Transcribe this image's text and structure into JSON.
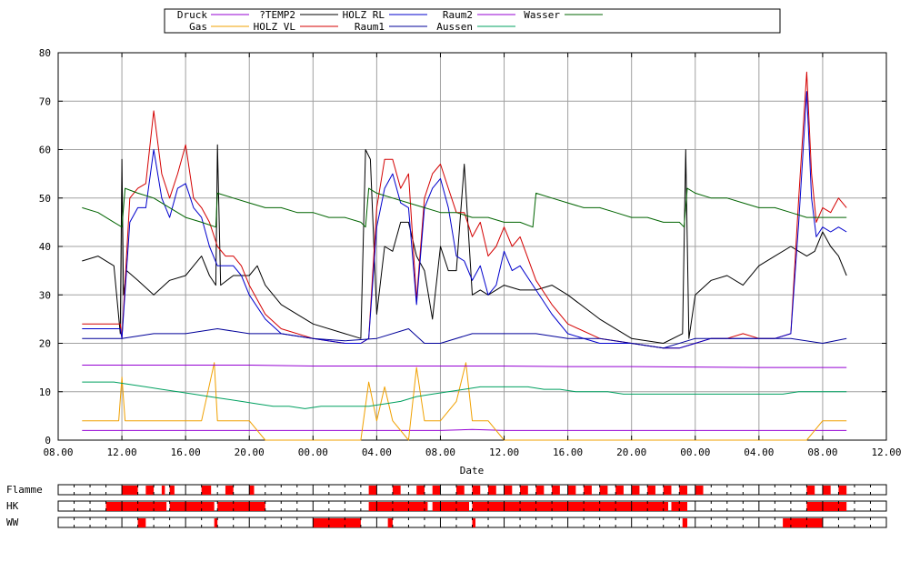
{
  "chart_data": {
    "type": "line",
    "xlabel": "Date",
    "x_tick_labels": [
      "08.00",
      "12.00",
      "16.00",
      "20.00",
      "00.00",
      "04.00",
      "08.00",
      "12.00",
      "16.00",
      "20.00",
      "00.00",
      "04.00",
      "08.00",
      "12.00"
    ],
    "ylim": [
      0,
      80
    ],
    "y_ticks": [
      0,
      10,
      20,
      30,
      40,
      50,
      60,
      70,
      80
    ],
    "grid": true,
    "legend_position": "top",
    "series": [
      {
        "name": "Druck",
        "color": "#9400d3",
        "x": [
          9.5,
          12,
          16,
          20,
          24,
          28,
          32,
          34,
          36,
          40,
          44,
          48,
          52,
          56,
          57.5
        ],
        "y": [
          2,
          2,
          2,
          2,
          2,
          2,
          2,
          2.2,
          2,
          2,
          2,
          2,
          2,
          2,
          2
        ]
      },
      {
        "name": "Gas",
        "color": "#f0a000",
        "x": [
          9.5,
          10,
          11,
          11.8,
          12,
          12.2,
          12.5,
          13,
          14,
          15,
          16,
          17,
          17.8,
          18,
          18.5,
          19,
          20,
          21,
          27,
          27.5,
          28,
          28.5,
          29,
          30,
          30.5,
          31,
          32,
          33,
          33.6,
          34,
          35,
          36,
          55,
          56,
          56.5,
          57,
          57.5
        ],
        "y": [
          4,
          4,
          4,
          4,
          13,
          4,
          4,
          4,
          4,
          4,
          4,
          4,
          16,
          4,
          4,
          4,
          4,
          0,
          0,
          12,
          4,
          11,
          4,
          0,
          15,
          4,
          4,
          8,
          16,
          4,
          4,
          0,
          0,
          4,
          4,
          4,
          4
        ]
      },
      {
        "name": "?TEMP2",
        "color": "#000000",
        "x": [
          9.5,
          10.5,
          11.5,
          11.9,
          12,
          12.1,
          12.3,
          13,
          14,
          15,
          16,
          16.5,
          17,
          17.5,
          17.9,
          18,
          18.2,
          19,
          20,
          20.5,
          21,
          22,
          24,
          26,
          27,
          27.3,
          27.6,
          28,
          28.5,
          29,
          29.5,
          30,
          30.5,
          31,
          31.5,
          32,
          32.5,
          33,
          33.5,
          34,
          34.5,
          35,
          35.5,
          36,
          37,
          38,
          39,
          40,
          42,
          44,
          46,
          47.2,
          47.4,
          47.6,
          48,
          49,
          50,
          51,
          52,
          53,
          54,
          54.5,
          55,
          55.5,
          56,
          56.5,
          57,
          57.5
        ],
        "y": [
          37,
          38,
          36,
          22,
          58,
          30,
          35,
          33,
          30,
          33,
          34,
          36,
          38,
          34,
          32,
          61,
          32,
          34,
          34,
          36,
          32,
          28,
          24,
          22,
          21,
          60,
          58,
          26,
          40,
          39,
          45,
          45,
          38,
          35,
          25,
          40,
          35,
          35,
          57,
          30,
          31,
          30,
          31,
          32,
          31,
          31,
          32,
          30,
          25,
          21,
          20,
          22,
          60,
          21,
          30,
          33,
          34,
          32,
          36,
          38,
          40,
          39,
          38,
          39,
          43,
          40,
          38,
          34
        ]
      },
      {
        "name": "HOLZ VL",
        "color": "#d40000",
        "x": [
          9.5,
          11.5,
          11.9,
          12,
          12.5,
          13,
          13.5,
          14,
          14.5,
          15,
          15.5,
          16,
          16.5,
          17,
          17.5,
          18,
          18.5,
          19,
          19.5,
          20,
          21,
          22,
          24,
          26,
          27,
          27.5,
          28,
          28.5,
          29,
          29.5,
          30,
          30.5,
          31,
          31.5,
          32,
          32.5,
          33,
          33.5,
          34,
          34.5,
          35,
          35.5,
          36,
          36.5,
          37,
          38,
          39,
          40,
          42,
          44,
          46,
          47,
          48,
          49,
          50,
          51,
          52,
          53,
          54,
          54.5,
          55,
          55.3,
          55.6,
          56,
          56.5,
          57,
          57.5
        ],
        "y": [
          24,
          24,
          24,
          21,
          50,
          52,
          53,
          68,
          55,
          50,
          55,
          61,
          50,
          48,
          45,
          40,
          38,
          38,
          36,
          32,
          26,
          23,
          21,
          20,
          20,
          21,
          48,
          58,
          58,
          52,
          55,
          29,
          50,
          55,
          57,
          52,
          47,
          47,
          42,
          45,
          38,
          40,
          44,
          40,
          42,
          33,
          28,
          24,
          21,
          20,
          19,
          19,
          20,
          21,
          21,
          22,
          21,
          21,
          22,
          50,
          76,
          55,
          45,
          48,
          47,
          50,
          48
        ]
      },
      {
        "name": "HOLZ RL",
        "color": "#0000cc",
        "x": [
          9.5,
          11.5,
          11.9,
          12,
          12.5,
          13,
          13.5,
          14,
          14.5,
          15,
          15.5,
          16,
          16.5,
          17,
          17.5,
          18,
          18.5,
          19,
          19.5,
          20,
          21,
          22,
          24,
          26,
          27,
          27.5,
          28,
          28.5,
          29,
          29.5,
          30,
          30.5,
          31,
          31.5,
          32,
          32.5,
          33,
          33.5,
          34,
          34.5,
          35,
          35.5,
          36,
          36.5,
          37,
          38,
          39,
          40,
          42,
          44,
          46,
          47,
          48,
          49,
          50,
          51,
          52,
          53,
          54,
          54.5,
          55,
          55.3,
          55.6,
          56,
          56.5,
          57,
          57.5
        ],
        "y": [
          23,
          23,
          23,
          21,
          45,
          48,
          48,
          60,
          50,
          46,
          52,
          53,
          48,
          46,
          40,
          36,
          36,
          36,
          34,
          30,
          25,
          22,
          21,
          20,
          20,
          21,
          44,
          52,
          55,
          49,
          48,
          28,
          48,
          52,
          54,
          48,
          38,
          37,
          33,
          36,
          30,
          32,
          39,
          35,
          36,
          31,
          26,
          22,
          20,
          20,
          19,
          19,
          20,
          21,
          21,
          21,
          21,
          21,
          22,
          45,
          72,
          50,
          42,
          44,
          43,
          44,
          43
        ]
      },
      {
        "name": "Raum1",
        "color": "#000099",
        "x": [
          9.5,
          12,
          14,
          16,
          18,
          20,
          22,
          24,
          26,
          28,
          30,
          31,
          32,
          34,
          36,
          38,
          40,
          42,
          44,
          46,
          48,
          50,
          52,
          54,
          56,
          57.5
        ],
        "y": [
          21,
          21,
          22,
          22,
          23,
          22,
          22,
          21,
          20.5,
          21,
          23,
          20,
          20,
          22,
          22,
          22,
          21,
          21,
          20,
          19,
          21,
          21,
          21,
          21,
          20,
          21
        ]
      },
      {
        "name": "Raum2",
        "color": "#9400d3",
        "x": [
          9.5,
          12,
          16,
          20,
          24,
          28,
          32,
          36,
          40,
          44,
          48,
          52,
          57.5
        ],
        "y": [
          15.5,
          15.5,
          15.5,
          15.5,
          15.3,
          15.3,
          15.3,
          15.3,
          15.2,
          15.2,
          15.1,
          15,
          15
        ]
      },
      {
        "name": "Aussen",
        "color": "#00a060",
        "x": [
          9.5,
          10.5,
          11.5,
          12.5,
          13.5,
          14.5,
          15.5,
          16.5,
          17.5,
          18.5,
          19.5,
          20.5,
          21.5,
          22.5,
          23.5,
          24.5,
          25.5,
          26.5,
          27.5,
          28.5,
          29.5,
          30.5,
          31.5,
          32.5,
          33.5,
          34.5,
          35.5,
          36.5,
          37.5,
          38.5,
          39.5,
          40.5,
          41.5,
          42.5,
          43.5,
          44.5,
          45.5,
          46.5,
          47.5,
          48.5,
          49.5,
          50.5,
          51.5,
          52.5,
          53.5,
          54.5,
          55.5,
          56.5,
          57.5
        ],
        "y": [
          12,
          12,
          12,
          11.5,
          11,
          10.5,
          10,
          9.5,
          9,
          8.5,
          8,
          7.5,
          7,
          7,
          6.5,
          7,
          7,
          7,
          7,
          7.5,
          8,
          9,
          9.5,
          10,
          10.5,
          11,
          11,
          11,
          11,
          10.5,
          10.5,
          10,
          10,
          10,
          9.5,
          9.5,
          9.5,
          9.5,
          9.5,
          9.5,
          9.5,
          9.5,
          9.5,
          9.5,
          9.5,
          10,
          10,
          10,
          10
        ]
      },
      {
        "name": "Wasser",
        "color": "#006400",
        "x": [
          9.5,
          10.5,
          11.5,
          12,
          12.2,
          13,
          14,
          15,
          16,
          17,
          17.9,
          18,
          19,
          20,
          21,
          22,
          23,
          24,
          25,
          26,
          27,
          27.3,
          27.5,
          28,
          29,
          30,
          31,
          32,
          33,
          34,
          35,
          36,
          37,
          37.8,
          38,
          39,
          40,
          41,
          42,
          43,
          44,
          45,
          46,
          47,
          47.3,
          47.5,
          48,
          49,
          50,
          51,
          52,
          53,
          54,
          55,
          56,
          57,
          57.5
        ],
        "y": [
          48,
          47,
          45,
          44,
          52,
          51,
          50,
          48,
          46,
          45,
          44,
          51,
          50,
          49,
          48,
          48,
          47,
          47,
          46,
          46,
          45,
          44,
          52,
          51,
          50,
          49,
          48,
          47,
          47,
          46,
          46,
          45,
          45,
          44,
          51,
          50,
          49,
          48,
          48,
          47,
          46,
          46,
          45,
          45,
          44,
          52,
          51,
          50,
          50,
          49,
          48,
          48,
          47,
          46,
          46,
          46,
          46
        ]
      }
    ],
    "status_strips": [
      {
        "label": "Flamme",
        "on_intervals": [
          [
            12,
            13
          ],
          [
            13.5,
            14
          ],
          [
            14.5,
            14.7
          ],
          [
            15,
            15.3
          ],
          [
            17,
            17.6
          ],
          [
            18.5,
            19
          ],
          [
            20,
            20.3
          ],
          [
            27.5,
            28
          ],
          [
            29,
            29.5
          ],
          [
            30.5,
            31
          ],
          [
            31.5,
            32
          ],
          [
            33,
            33.5
          ],
          [
            34,
            34.5
          ],
          [
            35,
            35.5
          ],
          [
            36,
            36.5
          ],
          [
            37,
            37.5
          ],
          [
            38,
            38.5
          ],
          [
            39,
            39.5
          ],
          [
            40,
            40.5
          ],
          [
            41,
            41.5
          ],
          [
            42,
            42.5
          ],
          [
            43,
            43.5
          ],
          [
            44,
            44.5
          ],
          [
            45,
            45.5
          ],
          [
            46,
            46.5
          ],
          [
            47,
            47.5
          ],
          [
            48,
            48.5
          ],
          [
            55,
            55.5
          ],
          [
            56,
            56.5
          ],
          [
            57,
            57.5
          ]
        ]
      },
      {
        "label": "HK",
        "on_intervals": [
          [
            11,
            14.8
          ],
          [
            15,
            17.8
          ],
          [
            18,
            21
          ],
          [
            27.5,
            31.2
          ],
          [
            31.5,
            33.8
          ],
          [
            34,
            46.3
          ],
          [
            46.5,
            47.5
          ],
          [
            55,
            57.5
          ]
        ]
      },
      {
        "label": "WW",
        "on_intervals": [
          [
            13,
            13.5
          ],
          [
            17.8,
            18
          ],
          [
            24,
            27
          ],
          [
            28.7,
            29
          ],
          [
            34,
            34.2
          ],
          [
            47.2,
            47.5
          ],
          [
            53.5,
            56
          ]
        ]
      }
    ]
  }
}
